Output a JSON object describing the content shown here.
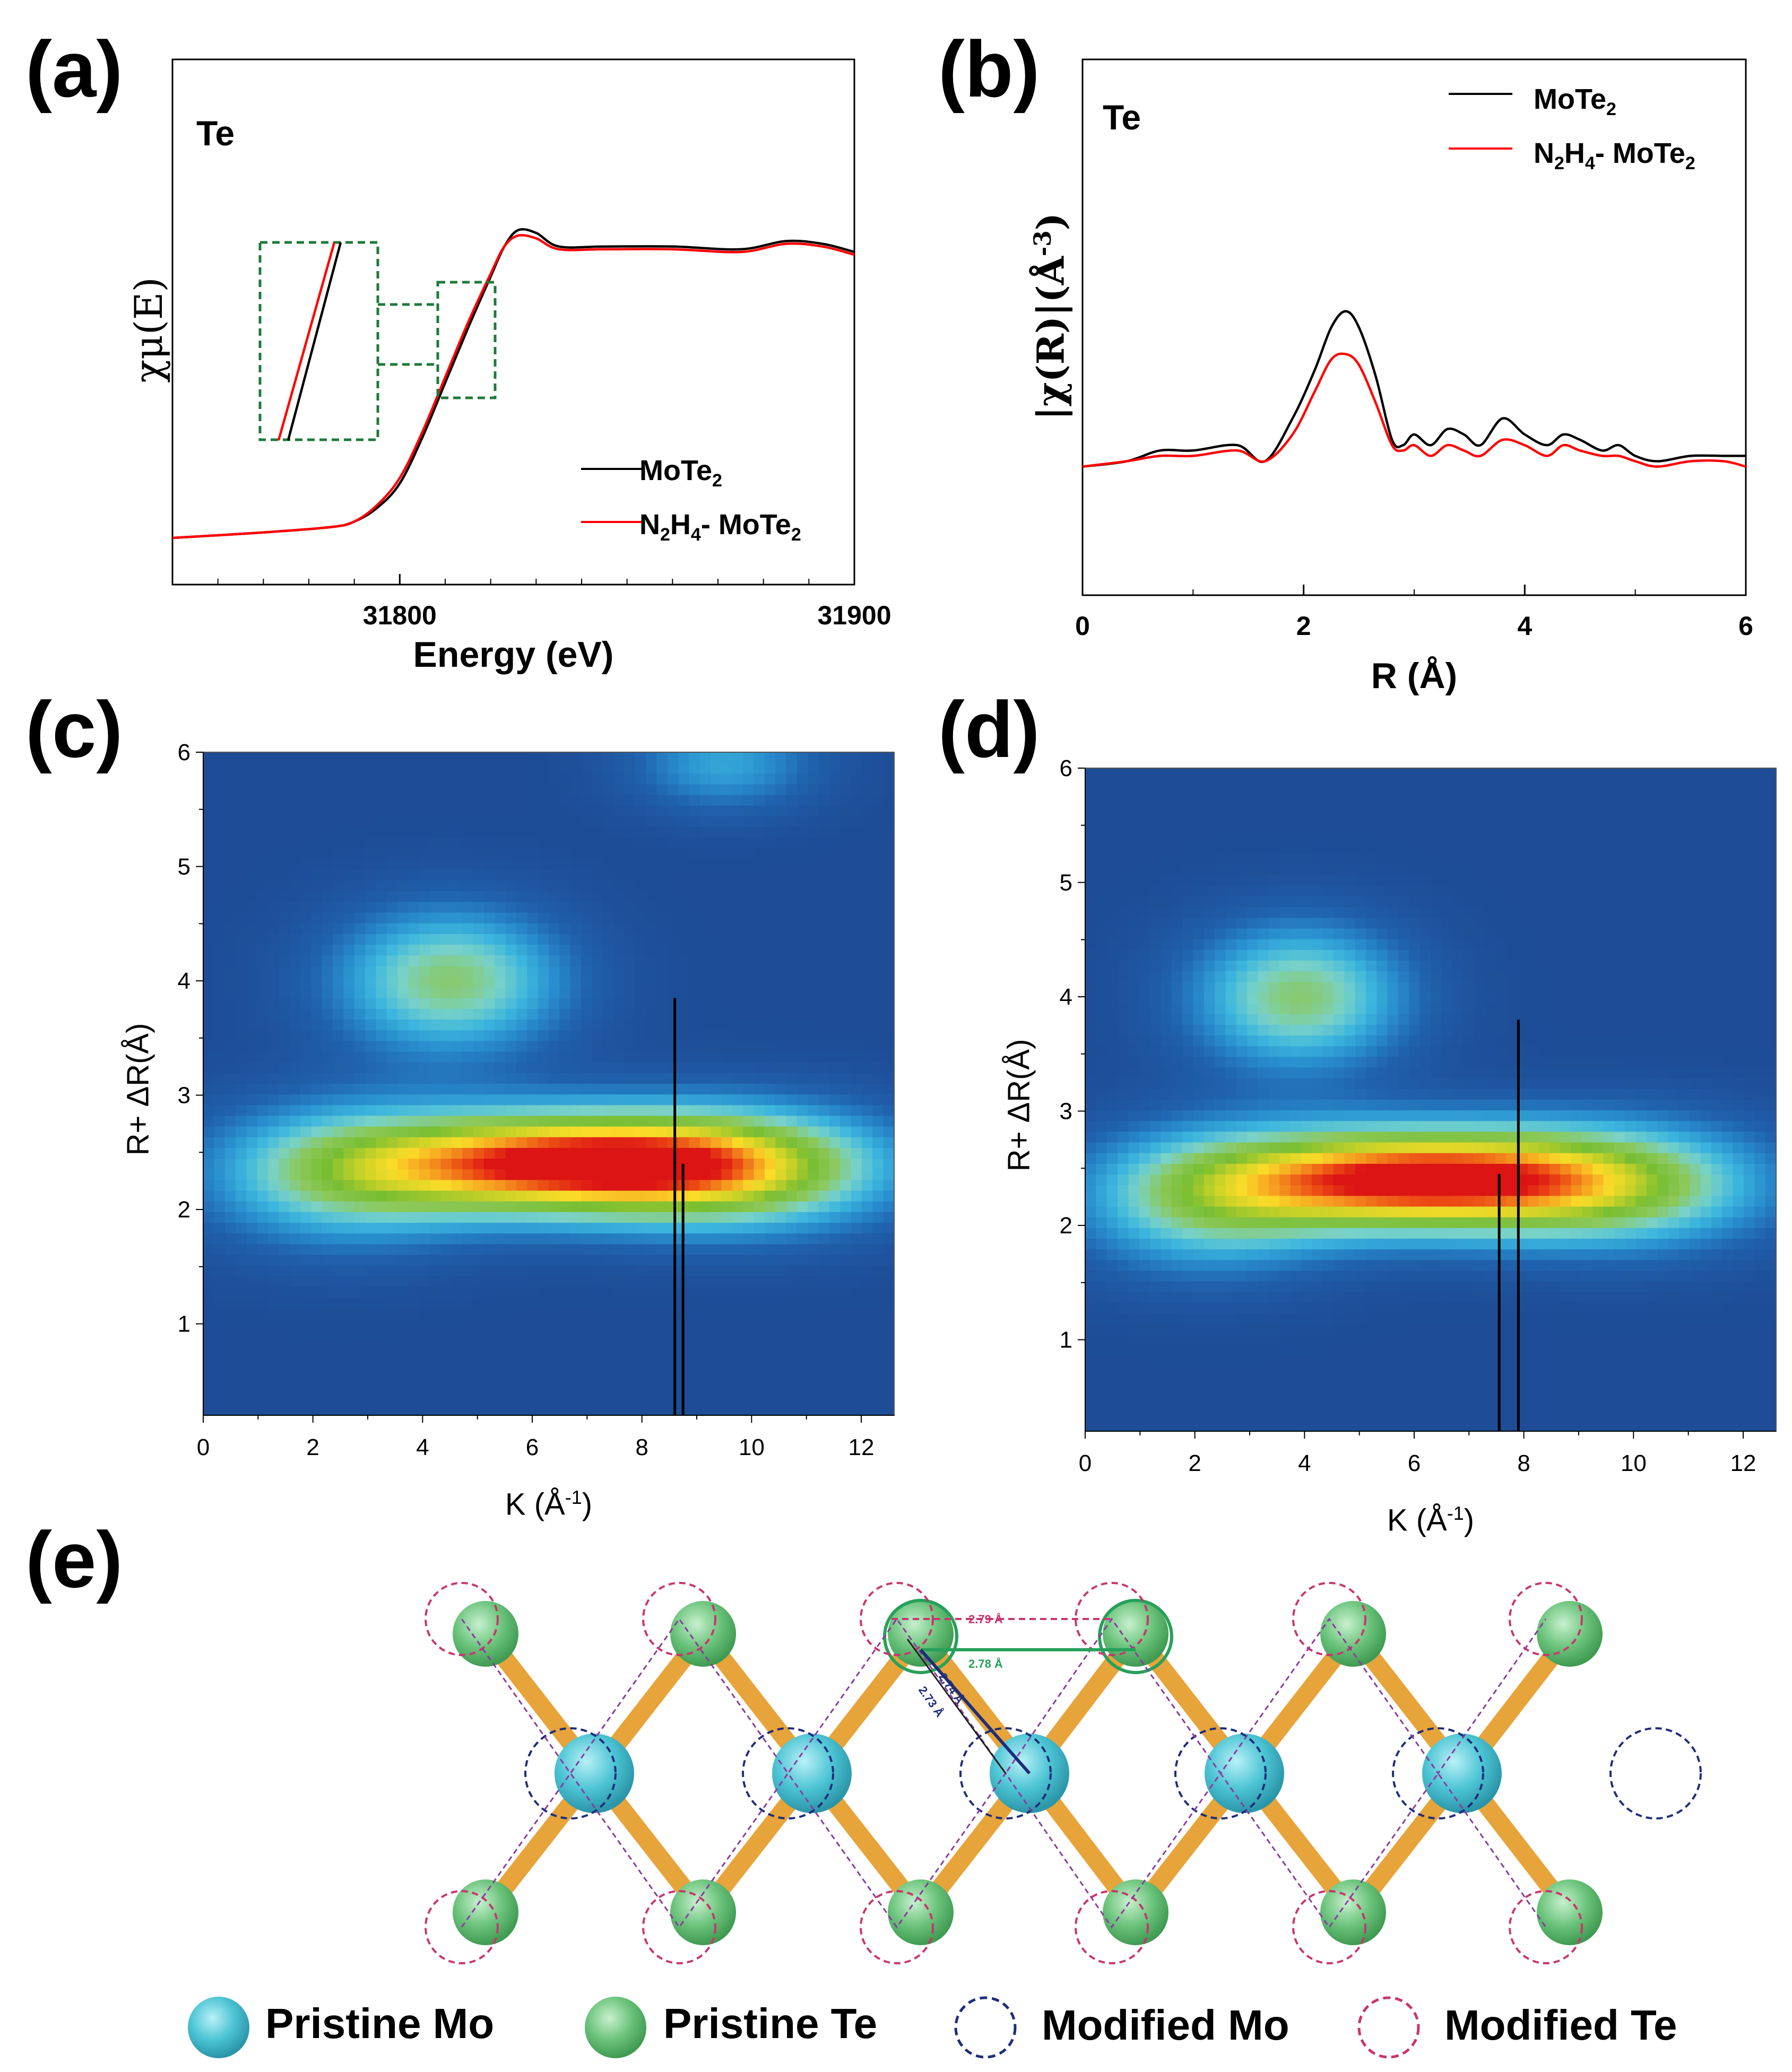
{
  "panels": {
    "a": {
      "letter": "(a)"
    },
    "b": {
      "letter": "(b)"
    },
    "c": {
      "letter": "(c)"
    },
    "d": {
      "letter": "(d)"
    },
    "e": {
      "letter": "(e)"
    }
  },
  "chart_data": [
    {
      "id": "a",
      "type": "line",
      "title": "",
      "element_label": "Te",
      "xlabel": "Energy (eV)",
      "ylabel": "χμ(E)",
      "xlim": [
        31750,
        31900
      ],
      "xticks": [
        "31800",
        "31900"
      ],
      "xtick_values": [
        31800,
        31900
      ],
      "ylim": [
        0,
        1.35
      ],
      "series": [
        {
          "name": "MoTe2",
          "label_main": "MoTe",
          "label_sub": "2",
          "color": "#000000",
          "x": [
            31750,
            31770,
            31785,
            31790,
            31795,
            31800,
            31805,
            31810,
            31815,
            31820,
            31823,
            31826,
            31830,
            31835,
            31845,
            31860,
            31875,
            31885,
            31893,
            31900
          ],
          "y": [
            0.0,
            0.02,
            0.04,
            0.06,
            0.11,
            0.2,
            0.37,
            0.57,
            0.77,
            0.96,
            1.07,
            1.13,
            1.12,
            1.07,
            1.07,
            1.07,
            1.06,
            1.09,
            1.08,
            1.05
          ]
        },
        {
          "name": "N2H4- MoTe2",
          "label_parts": [
            "N",
            "2",
            "H",
            "4",
            "- MoTe",
            "2"
          ],
          "color": "#ff0000",
          "x": [
            31750,
            31770,
            31785,
            31790,
            31795,
            31800,
            31805,
            31810,
            31815,
            31820,
            31823,
            31826,
            31830,
            31835,
            31845,
            31860,
            31875,
            31885,
            31893,
            31900
          ],
          "y": [
            0.0,
            0.02,
            0.04,
            0.06,
            0.12,
            0.22,
            0.39,
            0.59,
            0.79,
            0.97,
            1.07,
            1.11,
            1.1,
            1.06,
            1.06,
            1.06,
            1.05,
            1.08,
            1.07,
            1.04
          ]
        }
      ]
    },
    {
      "id": "b",
      "type": "line",
      "title": "",
      "element_label": "Te",
      "xlabel": "R (Å)",
      "ylabel": "|χ(R)|(Å-3)",
      "ylabel_parts": [
        "|χ(R)|(Å",
        "-3",
        ")"
      ],
      "xlim": [
        0,
        6
      ],
      "xticks": [
        "0",
        "2",
        "4",
        "6"
      ],
      "xtick_values": [
        0,
        2,
        4,
        6
      ],
      "ylim": [
        0,
        1.0
      ],
      "series": [
        {
          "name": "MoTe2",
          "label_main": "MoTe",
          "label_sub": "2",
          "color": "#000000",
          "x": [
            0,
            0.4,
            0.7,
            1.0,
            1.4,
            1.65,
            1.9,
            2.1,
            2.25,
            2.38,
            2.5,
            2.65,
            2.8,
            2.9,
            3.0,
            3.15,
            3.3,
            3.45,
            3.6,
            3.8,
            4.0,
            4.2,
            4.35,
            4.5,
            4.7,
            4.85,
            5.0,
            5.2,
            5.5,
            5.8,
            6.0
          ],
          "y": [
            0.24,
            0.25,
            0.27,
            0.27,
            0.28,
            0.25,
            0.33,
            0.42,
            0.5,
            0.53,
            0.5,
            0.41,
            0.29,
            0.28,
            0.3,
            0.28,
            0.31,
            0.3,
            0.28,
            0.33,
            0.3,
            0.28,
            0.3,
            0.29,
            0.27,
            0.28,
            0.26,
            0.25,
            0.26,
            0.26,
            0.26
          ]
        },
        {
          "name": "N2H4- MoTe2",
          "label_parts": [
            "N",
            "2",
            "H",
            "4",
            "- MoTe",
            "2"
          ],
          "color": "#ff0000",
          "x": [
            0,
            0.4,
            0.7,
            1.0,
            1.4,
            1.65,
            1.9,
            2.1,
            2.25,
            2.38,
            2.5,
            2.65,
            2.8,
            2.9,
            3.0,
            3.15,
            3.3,
            3.45,
            3.6,
            3.8,
            4.0,
            4.2,
            4.35,
            4.5,
            4.7,
            4.85,
            5.0,
            5.2,
            5.5,
            5.8,
            6.0
          ],
          "y": [
            0.24,
            0.25,
            0.26,
            0.26,
            0.27,
            0.25,
            0.3,
            0.38,
            0.44,
            0.45,
            0.43,
            0.36,
            0.28,
            0.27,
            0.28,
            0.26,
            0.28,
            0.27,
            0.26,
            0.29,
            0.28,
            0.26,
            0.28,
            0.27,
            0.26,
            0.26,
            0.25,
            0.24,
            0.25,
            0.25,
            0.24
          ]
        }
      ]
    },
    {
      "id": "c",
      "type": "heatmap",
      "title": "",
      "xlabel_main": "K (Å",
      "xlabel_sup": "-1",
      "xlabel_end": ")",
      "ylabel": "R+ ΔR(Å)",
      "xlim": [
        0,
        12.6
      ],
      "ylim": [
        0.2,
        6
      ],
      "xticks": [
        "0",
        "2",
        "4",
        "6",
        "8",
        "10",
        "12"
      ],
      "xtick_values": [
        0,
        2,
        4,
        6,
        8,
        10,
        12
      ],
      "yticks": [
        "1",
        "2",
        "3",
        "4",
        "5",
        "6"
      ],
      "ytick_values": [
        1,
        2,
        3,
        4,
        5,
        6
      ],
      "peaks": [
        {
          "k": 6.7,
          "r": 2.4,
          "intensity": 1.0,
          "sk": 2.6,
          "sr": 0.32
        },
        {
          "k": 4.5,
          "r": 4.0,
          "intensity": 0.5,
          "sk": 1.5,
          "sr": 0.45
        },
        {
          "k": 10.0,
          "r": 2.35,
          "intensity": 0.45,
          "sk": 2.0,
          "sr": 0.4
        },
        {
          "k": 2.5,
          "r": 2.3,
          "intensity": 0.4,
          "sk": 1.8,
          "sr": 0.45
        },
        {
          "k": 9.5,
          "r": 5.9,
          "intensity": 0.28,
          "sk": 1.2,
          "sr": 0.3
        }
      ],
      "markers": [
        {
          "k": 8.6,
          "r": 3.85
        },
        {
          "k": 8.75,
          "r": 2.4
        }
      ]
    },
    {
      "id": "d",
      "type": "heatmap",
      "title": "",
      "xlabel_main": "K (Å",
      "xlabel_sup": "-1",
      "xlabel_end": ")",
      "ylabel": "R+ ΔR(Å)",
      "xlim": [
        0,
        12.6
      ],
      "ylim": [
        0.2,
        6
      ],
      "xticks": [
        "0",
        "2",
        "4",
        "6",
        "8",
        "10",
        "12"
      ],
      "xtick_values": [
        0,
        2,
        4,
        6,
        8,
        10,
        12
      ],
      "yticks": [
        "1",
        "2",
        "3",
        "4",
        "5",
        "6"
      ],
      "ytick_values": [
        1,
        2,
        3,
        4,
        5,
        6
      ],
      "peaks": [
        {
          "k": 6.0,
          "r": 2.4,
          "intensity": 1.0,
          "sk": 2.5,
          "sr": 0.32
        },
        {
          "k": 3.9,
          "r": 4.0,
          "intensity": 0.5,
          "sk": 1.4,
          "sr": 0.45
        },
        {
          "k": 9.8,
          "r": 2.35,
          "intensity": 0.45,
          "sk": 2.0,
          "sr": 0.4
        },
        {
          "k": 2.2,
          "r": 2.2,
          "intensity": 0.4,
          "sk": 1.7,
          "sr": 0.45
        }
      ],
      "markers": [
        {
          "k": 7.55,
          "r": 2.45
        },
        {
          "k": 7.9,
          "r": 3.8
        }
      ]
    }
  ],
  "panel_e": {
    "distances": {
      "te_te_modified": "2.79 Å",
      "te_te_pristine": "2.78 Å",
      "mo_te_a": "2.74 Å",
      "mo_te_b": "2.73 Å"
    },
    "legend": [
      {
        "label": "Pristine Mo",
        "color": "#4cc4d4"
      },
      {
        "label": "Pristine Te",
        "color": "#6cc47c"
      },
      {
        "label": "Modified Mo",
        "color": "#1f2d7a"
      },
      {
        "label": "Modified Te",
        "color": "#c8366e"
      }
    ]
  }
}
